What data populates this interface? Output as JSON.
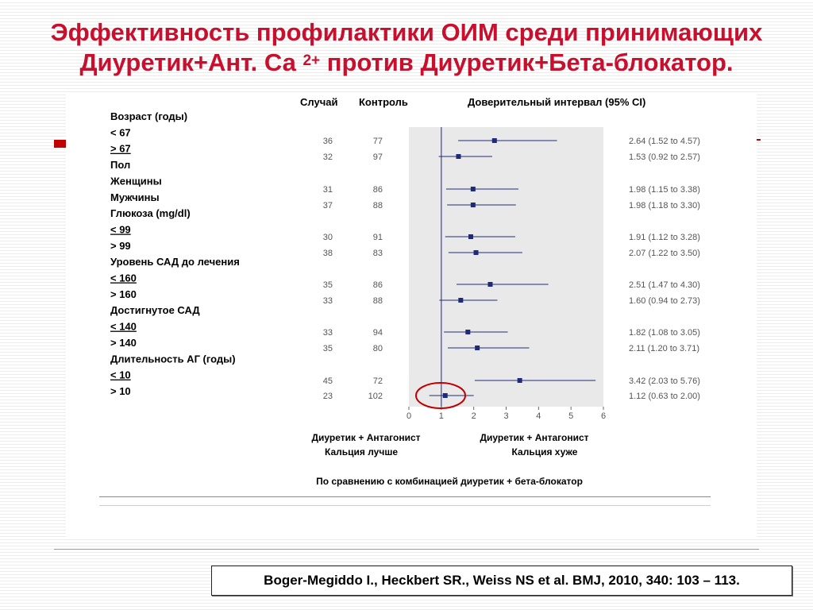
{
  "title": {
    "line1": "Эффективность профилактики ОИМ среди принимающих",
    "line2_main": "Диуретик+Ант. Са ",
    "line2_sup": "2+",
    "line2_tail": " против Диуретик+Бета-блокатор."
  },
  "citation": "Boger-Megiddo I., Heckbert SR., Weiss NS et al.  BMJ, 2010, 340: 103 – 113.",
  "colors": {
    "title": "#c8102e",
    "shade": "#e9e9e9",
    "marker": "#1f2a7a",
    "ref_line": "#3a45a0",
    "highlight": "#c00000"
  },
  "chart_data": {
    "type": "forest",
    "headers": {
      "cases": "Случай",
      "controls": "Контроль",
      "ci": "Доверительный  интервал (95% CI)"
    },
    "labels": [
      {
        "text": "Возраст (годы)"
      },
      {
        "text": "< 67"
      },
      {
        "text": "> 67",
        "u": true
      },
      {
        "text": "Пол"
      },
      {
        "text": "Женщины"
      },
      {
        "text": "Мужчины"
      },
      {
        "text": "Глюкоза (mg/dl)"
      },
      {
        "text": "<  99",
        "u": true
      },
      {
        "text": ">  99"
      },
      {
        "text": "Уровень САД до лечения"
      },
      {
        "text": "<  160",
        "u": true
      },
      {
        "text": ">  160"
      },
      {
        "text": "Достигнутое САД"
      },
      {
        "text": "<  140",
        "u": true
      },
      {
        "text": ">  140"
      },
      {
        "text": "Длительность АГ (годы)"
      },
      {
        "text": "<  10",
        "u": true
      },
      {
        "text": ">  10"
      }
    ],
    "rows": [
      {
        "cases": "36",
        "controls": "77",
        "or": 2.64,
        "lo": 1.52,
        "hi": 4.57,
        "ci_text": "2.64 (1.52 to 4.57)"
      },
      {
        "cases": "32",
        "controls": "97",
        "or": 1.53,
        "lo": 0.92,
        "hi": 2.57,
        "ci_text": "1.53 (0.92 to 2.57)"
      },
      {
        "cases": "31",
        "controls": "86",
        "or": 1.98,
        "lo": 1.15,
        "hi": 3.38,
        "ci_text": "1.98 (1.15 to 3.38)"
      },
      {
        "cases": "37",
        "controls": "88",
        "or": 1.98,
        "lo": 1.18,
        "hi": 3.3,
        "ci_text": "1.98 (1.18 to 3.30)"
      },
      {
        "cases": "30",
        "controls": "91",
        "or": 1.91,
        "lo": 1.12,
        "hi": 3.28,
        "ci_text": "1.91 (1.12 to 3.28)"
      },
      {
        "cases": "38",
        "controls": "83",
        "or": 2.07,
        "lo": 1.22,
        "hi": 3.5,
        "ci_text": "2.07 (1.22 to 3.50)"
      },
      {
        "cases": "35",
        "controls": "86",
        "or": 2.51,
        "lo": 1.47,
        "hi": 4.3,
        "ci_text": "2.51 (1.47 to 4.30)"
      },
      {
        "cases": "33",
        "controls": "88",
        "or": 1.6,
        "lo": 0.94,
        "hi": 2.73,
        "ci_text": "1.60 (0.94 to 2.73)"
      },
      {
        "cases": "33",
        "controls": "94",
        "or": 1.82,
        "lo": 1.08,
        "hi": 3.05,
        "ci_text": "1.82 (1.08 to 3.05)"
      },
      {
        "cases": "35",
        "controls": "80",
        "or": 2.11,
        "lo": 1.2,
        "hi": 3.71,
        "ci_text": "2.11 (1.20 to 3.71)"
      },
      {
        "cases": "45",
        "controls": "72",
        "or": 3.42,
        "lo": 2.03,
        "hi": 5.76,
        "ci_text": "3.42 (2.03 to 5.76)"
      },
      {
        "cases": "23",
        "controls": "102",
        "or": 1.12,
        "lo": 0.63,
        "hi": 2.0,
        "ci_text": "1.12 (0.63 to 2.00)",
        "highlighted": true
      }
    ],
    "x_ticks": [
      "0",
      "1",
      "2",
      "3",
      "4",
      "5",
      "6"
    ],
    "xlim": [
      0,
      6
    ],
    "reference_value": 1,
    "better_label": [
      "Диуретик + Антагонист",
      "Кальция лучше"
    ],
    "worse_label": [
      "Диуретик + Антагонист",
      "Кальция хуже"
    ],
    "comparison_label": "По сравнению с комбинацией диуретик + бета-блокатор"
  }
}
